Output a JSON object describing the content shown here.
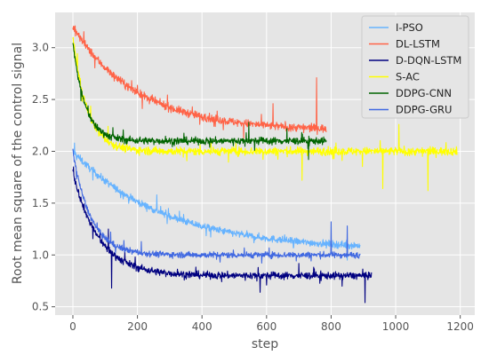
{
  "chart_data": {
    "type": "line",
    "xlabel": "step",
    "ylabel": "Root mean square of the control signal",
    "xlim": [
      -55,
      1245
    ],
    "ylim": [
      0.42,
      3.34
    ],
    "xticks": [
      0,
      200,
      400,
      600,
      800,
      1000,
      1200
    ],
    "yticks": [
      0.5,
      1.0,
      1.5,
      2.0,
      2.5,
      3.0
    ],
    "xtick_labels": [
      "0",
      "200",
      "400",
      "600",
      "800",
      "1000",
      "1200"
    ],
    "ytick_labels": [
      "0.5",
      "1.0",
      "1.5",
      "2.0",
      "2.5",
      "3.0"
    ],
    "grid": true,
    "legend_position": "top-right",
    "series": [
      {
        "name": "I-PSO",
        "color": "#66b3ff",
        "x_end": 890,
        "curve": {
          "start": 2.0,
          "end": 1.05,
          "tau": 280
        },
        "noise": 0.035,
        "spikes": [
          {
            "x": 5,
            "y": 2.08
          },
          {
            "x": 260,
            "y": 1.58
          },
          {
            "x": 850,
            "y": 0.95
          }
        ]
      },
      {
        "name": "DL-LSTM",
        "color": "#ff6347",
        "x_end": 785,
        "curve": {
          "start": 3.2,
          "end": 2.2,
          "tau": 200
        },
        "noise": 0.04,
        "spikes": [
          {
            "x": 755,
            "y": 2.71
          },
          {
            "x": 370,
            "y": 2.43
          },
          {
            "x": 620,
            "y": 2.46
          }
        ]
      },
      {
        "name": "D-DQN-LSTM",
        "color": "#000080",
        "x_end": 925,
        "curve": {
          "start": 1.8,
          "end": 0.8,
          "tau": 80
        },
        "noise": 0.035,
        "spikes": [
          {
            "x": 110,
            "y": 1.25
          },
          {
            "x": 120,
            "y": 0.68
          },
          {
            "x": 905,
            "y": 0.54
          },
          {
            "x": 580,
            "y": 0.64
          }
        ]
      },
      {
        "name": "S-AC",
        "color": "#ffff00",
        "x_end": 1190,
        "curve": {
          "start": 3.1,
          "end": 2.0,
          "tau": 45
        },
        "noise": 0.04,
        "spikes": [
          {
            "x": 710,
            "y": 1.72
          },
          {
            "x": 1010,
            "y": 2.26
          },
          {
            "x": 1100,
            "y": 1.62
          },
          {
            "x": 960,
            "y": 1.64
          }
        ]
      },
      {
        "name": "DDPG-CNN",
        "color": "#006400",
        "x_end": 785,
        "curve": {
          "start": 3.05,
          "end": 2.1,
          "tau": 38
        },
        "noise": 0.035,
        "spikes": [
          {
            "x": 730,
            "y": 1.92
          },
          {
            "x": 545,
            "y": 2.28
          }
        ]
      },
      {
        "name": "DDPG-GRU",
        "color": "#4169e1",
        "x_end": 890,
        "curve": {
          "start": 2.0,
          "end": 1.0,
          "tau": 55
        },
        "noise": 0.03,
        "spikes": [
          {
            "x": 800,
            "y": 1.32
          },
          {
            "x": 850,
            "y": 1.28
          }
        ]
      }
    ]
  }
}
